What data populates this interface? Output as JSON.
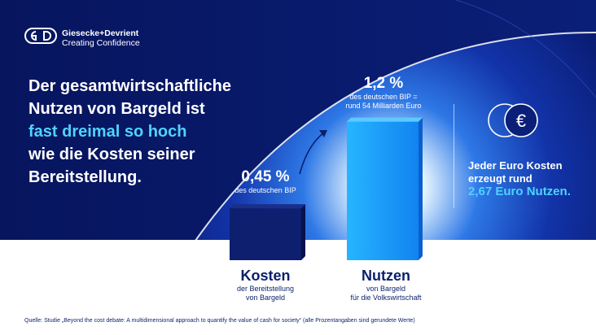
{
  "brand": {
    "name": "Giesecke+Devrient",
    "tagline": "Creating Confidence"
  },
  "headline": {
    "line1": "Der gesamtwirtschaftliche",
    "line2": "Nutzen von Bargeld ist",
    "highlight": "fast dreimal so hoch",
    "line4": "wie die Kosten seiner",
    "line5": "Bereitstellung."
  },
  "chart_data": {
    "type": "bar",
    "categories": [
      "Kosten",
      "Nutzen"
    ],
    "category_subtitles": [
      [
        "der Bereitstellung",
        "von Bargeld"
      ],
      [
        "von Bargeld",
        "für die Volkswirtschaft"
      ]
    ],
    "values": [
      0.45,
      1.2
    ],
    "value_labels": [
      "0,45 %",
      "1,2 %"
    ],
    "value_sublabels": [
      [
        "des deutschen BIP"
      ],
      [
        "des deutschen BIP =",
        "rund 54 Milliarden Euro"
      ]
    ],
    "unit": "% des deutschen BIP",
    "colors": [
      "#0d1f6e",
      "#1aa0ff"
    ],
    "title": "",
    "xlabel": "",
    "ylabel": ""
  },
  "side_panel": {
    "icon": "euro-coins-icon",
    "line1": "Jeder Euro Kosten",
    "line2": "erzeugt rund",
    "highlight": "2,67 Euro Nutzen."
  },
  "source": "Quelle: Studie „Beyond the cost debate: A multidimensional approach to quantify the value of cash for society“ (alle Prozentangaben sind gerundete Werte)",
  "colors": {
    "background_dark": "#06125c",
    "background_mid": "#1a3db8",
    "accent": "#4fd3ff",
    "navy_text": "#0b1f6b"
  }
}
